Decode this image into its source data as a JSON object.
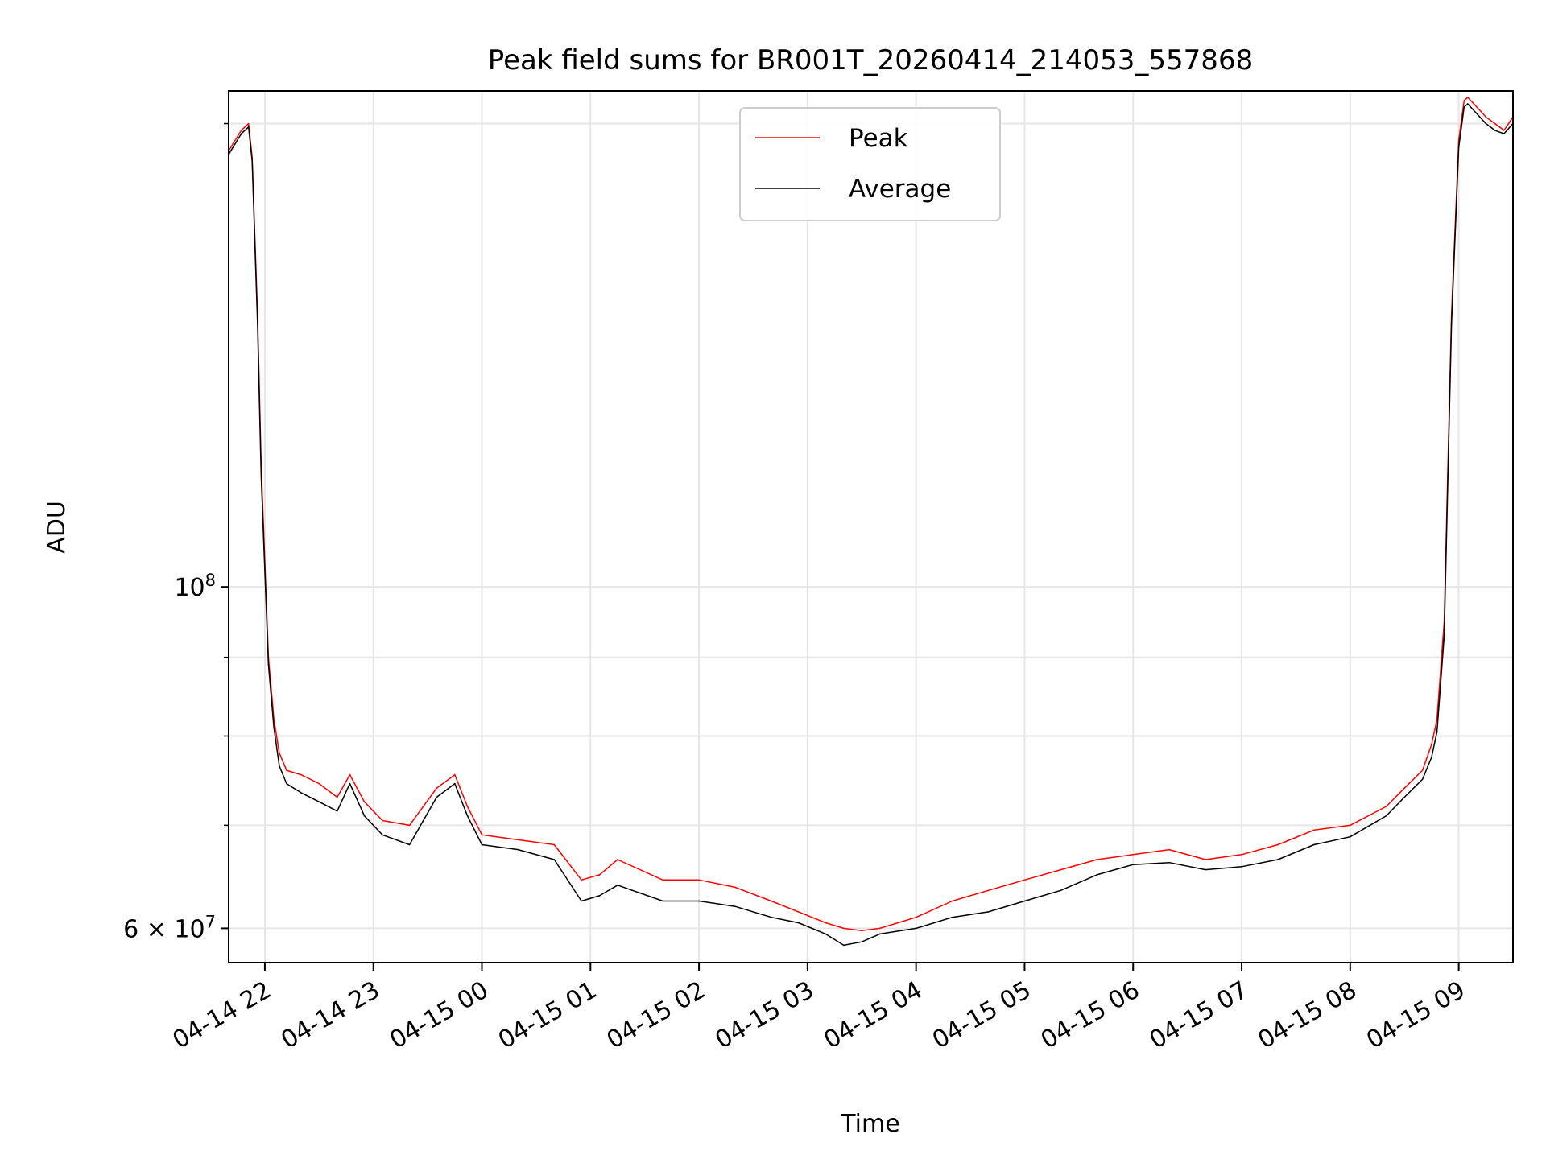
{
  "chart_data": {
    "type": "line",
    "title": "Peak field sums for BR001T_20260414_214053_557868",
    "xlabel": "Time",
    "ylabel": "ADU",
    "yscale": "log",
    "ylim": [
      57000000,
      210000000
    ],
    "xlim": [
      "2026-04-14 21:40",
      "2026-04-15 09:30"
    ],
    "grid": true,
    "legend_position": "top-center",
    "x_ticks": [
      {
        "t": "2026-04-14 22:00",
        "label": "04-14 22"
      },
      {
        "t": "2026-04-14 23:00",
        "label": "04-14 23"
      },
      {
        "t": "2026-04-15 00:00",
        "label": "04-15 00"
      },
      {
        "t": "2026-04-15 01:00",
        "label": "04-15 01"
      },
      {
        "t": "2026-04-15 02:00",
        "label": "04-15 02"
      },
      {
        "t": "2026-04-15 03:00",
        "label": "04-15 03"
      },
      {
        "t": "2026-04-15 04:00",
        "label": "04-15 04"
      },
      {
        "t": "2026-04-15 05:00",
        "label": "04-15 05"
      },
      {
        "t": "2026-04-15 06:00",
        "label": "04-15 06"
      },
      {
        "t": "2026-04-15 07:00",
        "label": "04-15 07"
      },
      {
        "t": "2026-04-15 08:00",
        "label": "04-15 08"
      },
      {
        "t": "2026-04-15 09:00",
        "label": "04-15 09"
      }
    ],
    "y_major_ticks": [
      {
        "value": 100000000,
        "label": "10",
        "exp": "8"
      },
      {
        "value": 60000000,
        "label": "6 × 10",
        "exp": "7"
      }
    ],
    "y_minor_ticks": [
      70000000,
      80000000,
      90000000,
      200000000
    ],
    "series": [
      {
        "name": "Peak",
        "color": "#ff0000",
        "x": [
          "2026-04-14 21:40",
          "2026-04-14 21:47",
          "2026-04-14 21:51",
          "2026-04-14 21:53",
          "2026-04-14 21:56",
          "2026-04-14 21:58",
          "2026-04-14 22:02",
          "2026-04-14 22:05",
          "2026-04-14 22:08",
          "2026-04-14 22:12",
          "2026-04-14 22:20",
          "2026-04-14 22:30",
          "2026-04-14 22:40",
          "2026-04-14 22:47",
          "2026-04-14 22:55",
          "2026-04-14 23:05",
          "2026-04-14 23:20",
          "2026-04-14 23:35",
          "2026-04-14 23:45",
          "2026-04-14 23:52",
          "2026-04-15 00:00",
          "2026-04-15 00:20",
          "2026-04-15 00:40",
          "2026-04-15 00:55",
          "2026-04-15 01:05",
          "2026-04-15 01:15",
          "2026-04-15 01:40",
          "2026-04-15 02:00",
          "2026-04-15 02:20",
          "2026-04-15 02:40",
          "2026-04-15 02:55",
          "2026-04-15 03:10",
          "2026-04-15 03:20",
          "2026-04-15 03:30",
          "2026-04-15 03:40",
          "2026-04-15 04:00",
          "2026-04-15 04:20",
          "2026-04-15 04:40",
          "2026-04-15 05:00",
          "2026-04-15 05:20",
          "2026-04-15 05:40",
          "2026-04-15 06:00",
          "2026-04-15 06:20",
          "2026-04-15 06:40",
          "2026-04-15 07:00",
          "2026-04-15 07:20",
          "2026-04-15 07:40",
          "2026-04-15 08:00",
          "2026-04-15 08:20",
          "2026-04-15 08:30",
          "2026-04-15 08:40",
          "2026-04-15 08:45",
          "2026-04-15 08:48",
          "2026-04-15 08:52",
          "2026-04-15 08:56",
          "2026-04-15 09:00",
          "2026-04-15 09:03",
          "2026-04-15 09:05",
          "2026-04-15 09:10",
          "2026-04-15 09:15",
          "2026-04-15 09:20",
          "2026-04-15 09:25",
          "2026-04-15 09:30"
        ],
        "values": [
          192000000,
          198000000,
          200000000,
          190000000,
          150000000,
          120000000,
          90000000,
          82000000,
          78000000,
          76000000,
          75500000,
          74500000,
          73000000,
          75500000,
          72500000,
          70500000,
          70000000,
          74000000,
          75500000,
          72000000,
          69000000,
          68500000,
          68000000,
          64500000,
          65000000,
          66500000,
          64500000,
          64500000,
          63800000,
          62500000,
          61500000,
          60500000,
          60000000,
          59800000,
          60000000,
          61000000,
          62500000,
          63500000,
          64500000,
          65500000,
          66500000,
          67000000,
          67500000,
          66500000,
          67000000,
          68000000,
          69500000,
          70000000,
          72000000,
          74000000,
          76000000,
          79000000,
          82000000,
          95000000,
          150000000,
          195000000,
          207000000,
          208000000,
          205000000,
          202000000,
          200000000,
          198000000,
          202000000
        ]
      },
      {
        "name": "Average",
        "color": "#000000",
        "x": [
          "2026-04-14 21:40",
          "2026-04-14 21:47",
          "2026-04-14 21:51",
          "2026-04-14 21:53",
          "2026-04-14 21:56",
          "2026-04-14 21:58",
          "2026-04-14 22:02",
          "2026-04-14 22:05",
          "2026-04-14 22:08",
          "2026-04-14 22:12",
          "2026-04-14 22:20",
          "2026-04-14 22:30",
          "2026-04-14 22:40",
          "2026-04-14 22:47",
          "2026-04-14 22:55",
          "2026-04-14 23:05",
          "2026-04-14 23:20",
          "2026-04-14 23:35",
          "2026-04-14 23:45",
          "2026-04-14 23:52",
          "2026-04-15 00:00",
          "2026-04-15 00:20",
          "2026-04-15 00:40",
          "2026-04-15 00:55",
          "2026-04-15 01:05",
          "2026-04-15 01:15",
          "2026-04-15 01:40",
          "2026-04-15 02:00",
          "2026-04-15 02:20",
          "2026-04-15 02:40",
          "2026-04-15 02:55",
          "2026-04-15 03:10",
          "2026-04-15 03:20",
          "2026-04-15 03:30",
          "2026-04-15 03:40",
          "2026-04-15 04:00",
          "2026-04-15 04:20",
          "2026-04-15 04:40",
          "2026-04-15 05:00",
          "2026-04-15 05:20",
          "2026-04-15 05:40",
          "2026-04-15 06:00",
          "2026-04-15 06:20",
          "2026-04-15 06:40",
          "2026-04-15 07:00",
          "2026-04-15 07:20",
          "2026-04-15 07:40",
          "2026-04-15 08:00",
          "2026-04-15 08:20",
          "2026-04-15 08:30",
          "2026-04-15 08:40",
          "2026-04-15 08:45",
          "2026-04-15 08:48",
          "2026-04-15 08:52",
          "2026-04-15 08:56",
          "2026-04-15 09:00",
          "2026-04-15 09:03",
          "2026-04-15 09:05",
          "2026-04-15 09:10",
          "2026-04-15 09:15",
          "2026-04-15 09:20",
          "2026-04-15 09:25",
          "2026-04-15 09:30"
        ],
        "values": [
          191000000,
          197000000,
          199000000,
          189000000,
          148000000,
          118000000,
          89000000,
          81000000,
          76500000,
          74500000,
          73500000,
          72500000,
          71500000,
          74500000,
          71000000,
          69000000,
          68000000,
          73000000,
          74500000,
          71000000,
          68000000,
          67500000,
          66500000,
          62500000,
          63000000,
          64000000,
          62500000,
          62500000,
          62000000,
          61000000,
          60500000,
          59500000,
          58500000,
          58800000,
          59500000,
          60000000,
          61000000,
          61500000,
          62500000,
          63500000,
          65000000,
          66000000,
          66200000,
          65500000,
          65800000,
          66500000,
          68000000,
          68800000,
          71000000,
          73000000,
          75000000,
          77500000,
          80500000,
          93000000,
          148000000,
          193000000,
          205000000,
          206000000,
          203000000,
          200000000,
          198000000,
          197000000,
          200000000
        ]
      }
    ]
  }
}
